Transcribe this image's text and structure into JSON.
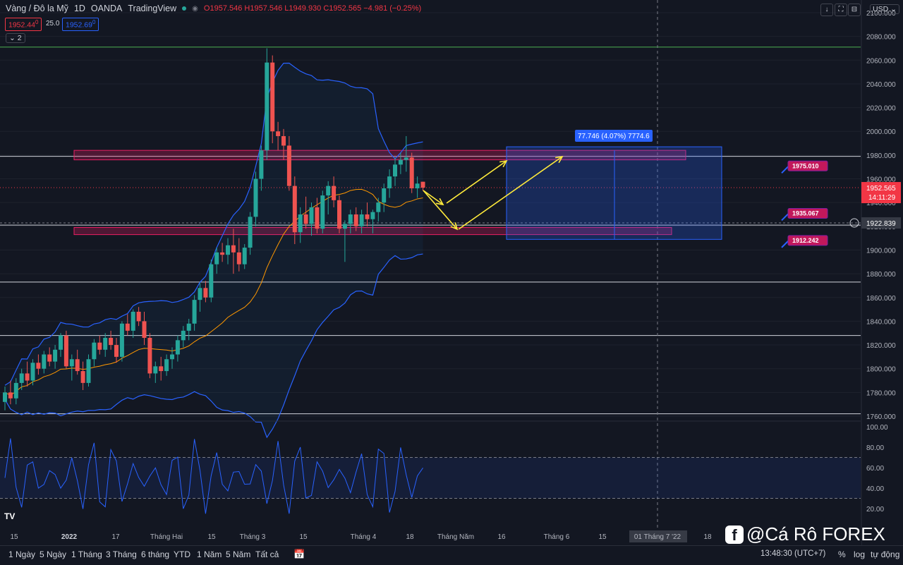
{
  "header": {
    "symbol": "Vàng / Đô la Mỹ",
    "interval": "1D",
    "broker": "OANDA",
    "platform": "TradingView",
    "open": "O1957.546",
    "high": "H1957.546",
    "low": "L1949.930",
    "close": "C1952.565",
    "change": "−4.981 (−0.25%)",
    "bid": "1952.44",
    "bid_sup": "0",
    "spread": "25.0",
    "ask": "1952.69",
    "ask_sup": "0",
    "indicator_count": "2",
    "currency": "USD"
  },
  "price_axis": {
    "ticks": [
      "2100.000",
      "2080.000",
      "2060.000",
      "2040.000",
      "2020.000",
      "2000.000",
      "1980.000",
      "1960.000",
      "1940.000",
      "1920.000",
      "1900.000",
      "1880.000",
      "1860.000",
      "1840.000",
      "1820.000",
      "1800.000",
      "1780.000",
      "1760.000"
    ],
    "last_price": "1952.565",
    "countdown": "14:11:29",
    "crosshair_price": "1922.839"
  },
  "rsi_axis": {
    "ticks": [
      "100.00",
      "80.00",
      "60.00",
      "40.00",
      "20.00"
    ]
  },
  "time_axis": [
    "15",
    "2022",
    "17",
    "Tháng Hai",
    "15",
    "Tháng 3",
    "15",
    "Tháng 4",
    "18",
    "Tháng Năm",
    "16",
    "Tháng 6",
    "15",
    "01 Tháng 7 '22",
    "18"
  ],
  "levels": [
    {
      "label": "1975.010",
      "price": 1975.01
    },
    {
      "label": "1935.067",
      "price": 1935.067
    },
    {
      "label": "1912.242",
      "price": 1912.242
    }
  ],
  "measure": {
    "label": "77.746 (4.07%) 7774.6"
  },
  "bottom_bar": {
    "timeframes": [
      "1 Ngày",
      "5 Ngày",
      "1 Tháng",
      "3 Tháng",
      "6 tháng",
      "YTD",
      "1 Năm",
      "5 Năm",
      "Tất cả"
    ],
    "clock": "13:48:30 (UTC+7)",
    "percent": "%",
    "log": "log",
    "auto": "tự động"
  },
  "watermark": {
    "text": "@Cá Rô FOREX"
  },
  "colors": {
    "bull": "#26a69a",
    "bear": "#ef5350",
    "band": "#2962ff",
    "ma": "#ff9800",
    "arrow": "#ffeb3b",
    "zone": "#e91e63"
  },
  "chart_data": {
    "type": "candlestick",
    "price_range": [
      1760,
      2100
    ],
    "candles": [
      [
        1772,
        1785,
        1765,
        1780
      ],
      [
        1780,
        1790,
        1770,
        1775
      ],
      [
        1775,
        1792,
        1770,
        1788
      ],
      [
        1788,
        1800,
        1782,
        1796
      ],
      [
        1796,
        1806,
        1785,
        1790
      ],
      [
        1790,
        1808,
        1786,
        1805
      ],
      [
        1805,
        1812,
        1795,
        1800
      ],
      [
        1800,
        1815,
        1796,
        1812
      ],
      [
        1812,
        1818,
        1802,
        1806
      ],
      [
        1806,
        1820,
        1800,
        1816
      ],
      [
        1816,
        1830,
        1810,
        1828
      ],
      [
        1828,
        1832,
        1800,
        1802
      ],
      [
        1802,
        1812,
        1790,
        1808
      ],
      [
        1808,
        1816,
        1795,
        1798
      ],
      [
        1798,
        1806,
        1782,
        1788
      ],
      [
        1788,
        1812,
        1785,
        1808
      ],
      [
        1808,
        1825,
        1802,
        1822
      ],
      [
        1822,
        1828,
        1812,
        1816
      ],
      [
        1816,
        1830,
        1810,
        1826
      ],
      [
        1826,
        1832,
        1816,
        1820
      ],
      [
        1820,
        1826,
        1805,
        1810
      ],
      [
        1810,
        1840,
        1806,
        1838
      ],
      [
        1838,
        1846,
        1828,
        1832
      ],
      [
        1832,
        1850,
        1826,
        1848
      ],
      [
        1848,
        1852,
        1836,
        1840
      ],
      [
        1840,
        1848,
        1820,
        1826
      ],
      [
        1826,
        1830,
        1792,
        1796
      ],
      [
        1796,
        1806,
        1788,
        1802
      ],
      [
        1802,
        1810,
        1790,
        1798
      ],
      [
        1798,
        1812,
        1794,
        1808
      ],
      [
        1808,
        1818,
        1800,
        1812
      ],
      [
        1812,
        1828,
        1806,
        1824
      ],
      [
        1824,
        1836,
        1818,
        1832
      ],
      [
        1832,
        1842,
        1824,
        1838
      ],
      [
        1838,
        1862,
        1832,
        1858
      ],
      [
        1858,
        1872,
        1848,
        1868
      ],
      [
        1868,
        1874,
        1856,
        1860
      ],
      [
        1860,
        1892,
        1856,
        1888
      ],
      [
        1888,
        1902,
        1880,
        1898
      ],
      [
        1898,
        1906,
        1890,
        1896
      ],
      [
        1896,
        1910,
        1888,
        1904
      ],
      [
        1904,
        1918,
        1880,
        1898
      ],
      [
        1898,
        1910,
        1882,
        1888
      ],
      [
        1888,
        1905,
        1884,
        1902
      ],
      [
        1902,
        1932,
        1896,
        1928
      ],
      [
        1928,
        1966,
        1920,
        1960
      ],
      [
        1960,
        1988,
        1950,
        1984
      ],
      [
        1984,
        2070,
        1976,
        2058
      ],
      [
        2058,
        2064,
        1990,
        2000
      ],
      [
        2000,
        2008,
        1984,
        1996
      ],
      [
        1996,
        2002,
        1976,
        1988
      ],
      [
        1988,
        1996,
        1950,
        1954
      ],
      [
        1954,
        1962,
        1905,
        1915
      ],
      [
        1915,
        1936,
        1906,
        1930
      ],
      [
        1930,
        1945,
        1918,
        1922
      ],
      [
        1922,
        1940,
        1912,
        1936
      ],
      [
        1936,
        1944,
        1914,
        1918
      ],
      [
        1918,
        1950,
        1914,
        1946
      ],
      [
        1946,
        1958,
        1930,
        1954
      ],
      [
        1954,
        1962,
        1936,
        1942
      ],
      [
        1942,
        1946,
        1914,
        1918
      ],
      [
        1918,
        1925,
        1890,
        1922
      ],
      [
        1922,
        1934,
        1914,
        1930
      ],
      [
        1930,
        1936,
        1916,
        1920
      ],
      [
        1920,
        1934,
        1914,
        1930
      ],
      [
        1930,
        1940,
        1920,
        1926
      ],
      [
        1926,
        1934,
        1914,
        1932
      ],
      [
        1932,
        1944,
        1924,
        1940
      ],
      [
        1940,
        1956,
        1932,
        1952
      ],
      [
        1952,
        1968,
        1944,
        1962
      ],
      [
        1962,
        1978,
        1954,
        1972
      ],
      [
        1972,
        1982,
        1964,
        1976
      ],
      [
        1976,
        1996,
        1966,
        1978
      ],
      [
        1978,
        1982,
        1948,
        1952
      ],
      [
        1952,
        1962,
        1944,
        1956
      ],
      [
        1957.546,
        1957.546,
        1949.93,
        1952.565
      ]
    ]
  }
}
